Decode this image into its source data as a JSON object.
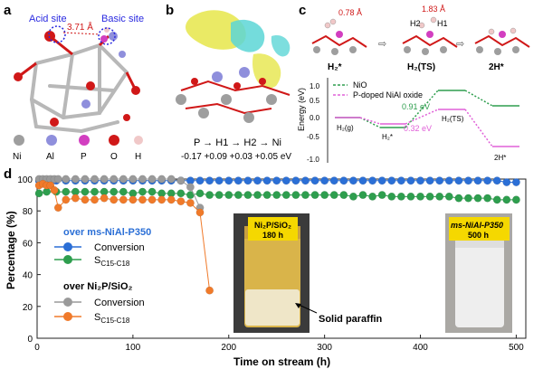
{
  "panels": {
    "a": "a",
    "b": "b",
    "c": "c",
    "d": "d"
  },
  "panel_a": {
    "acid_site": "Acid site",
    "basic_site": "Basic site",
    "distance": "3.71 Å",
    "legend": [
      "Ni",
      "Al",
      "P",
      "O",
      "H"
    ],
    "colors": {
      "Ni": "#9e9e9e",
      "Al": "#8f8fdc",
      "P": "#d23fc0",
      "O": "#d01818",
      "H": "#f0c8c8"
    }
  },
  "panel_b": {
    "path": "P → H1 → H2 → Ni",
    "charges": "-0.17  +0.09  +0.03  +0.05 eV"
  },
  "panel_c": {
    "dist1": "0.78 Å",
    "dist2": "1.83 Å",
    "h2_label": "H2",
    "h1_label": "H1",
    "states_top": [
      "H₂*",
      "H₂(TS)",
      "2H*"
    ],
    "legend": [
      "NiO",
      "P-doped NiAl oxide"
    ],
    "ylabel": "Energy (eV)",
    "yticks": [
      "1.0",
      "0.5",
      "0.0",
      "-0.5",
      "-1.0"
    ],
    "barrier_nio": "0.91 eV",
    "barrier_p": "0.32 eV",
    "state_labels": [
      "H₂(g)",
      "H₂*",
      "H₂(TS)",
      "2H*"
    ],
    "colors": {
      "nio": "#2e9e4e",
      "p": "#e060d8"
    }
  },
  "chart_data": {
    "type": "scatter",
    "xlabel": "Time on stream (h)",
    "ylabel": "Percentage (%)",
    "xlim": [
      0,
      510
    ],
    "ylim": [
      0,
      100
    ],
    "xticks": [
      "0",
      "100",
      "200",
      "300",
      "400",
      "500"
    ],
    "yticks": [
      "0",
      "20",
      "40",
      "60",
      "80",
      "100"
    ],
    "series": [
      {
        "name": "Conversion",
        "group": "ms-NiAl-P350",
        "color": "#2b6fd6",
        "x": [
          2,
          10,
          20,
          30,
          40,
          50,
          60,
          70,
          80,
          90,
          100,
          110,
          120,
          130,
          140,
          150,
          160,
          170,
          180,
          190,
          200,
          210,
          220,
          230,
          240,
          250,
          260,
          270,
          280,
          290,
          300,
          310,
          320,
          330,
          340,
          350,
          360,
          370,
          380,
          390,
          400,
          410,
          420,
          430,
          440,
          450,
          460,
          470,
          480,
          490,
          500
        ],
        "y": [
          99,
          99,
          99,
          99,
          99,
          99,
          99,
          99,
          99,
          99,
          99,
          99,
          99,
          99,
          99,
          99,
          99,
          99,
          99,
          99,
          99,
          99,
          99,
          99,
          99,
          99,
          99,
          99,
          99,
          99,
          99,
          99,
          99,
          99,
          99,
          99,
          99,
          99,
          99,
          99,
          99,
          99,
          99,
          99,
          99,
          99,
          99,
          99,
          99,
          98,
          98
        ]
      },
      {
        "name": "S C15-C18",
        "group": "ms-NiAl-P350",
        "color": "#2e9e4e",
        "x": [
          2,
          10,
          20,
          30,
          40,
          50,
          60,
          70,
          80,
          90,
          100,
          110,
          120,
          130,
          140,
          150,
          160,
          170,
          180,
          190,
          200,
          210,
          220,
          230,
          240,
          250,
          260,
          270,
          280,
          290,
          300,
          310,
          320,
          330,
          340,
          350,
          360,
          370,
          380,
          390,
          400,
          410,
          420,
          430,
          440,
          450,
          460,
          470,
          480,
          490,
          500
        ],
        "y": [
          91,
          92,
          92,
          92,
          92,
          92,
          92,
          92,
          92,
          92,
          91,
          92,
          92,
          91,
          91,
          91,
          90,
          91,
          90,
          90,
          90,
          90,
          90,
          90,
          90,
          90,
          90,
          90,
          90,
          90,
          90,
          90,
          90,
          89,
          90,
          89,
          90,
          89,
          89,
          89,
          89,
          89,
          89,
          89,
          88,
          88,
          88,
          88,
          87,
          87,
          87
        ]
      },
      {
        "name": "Conversion",
        "group": "Ni2P/SiO2",
        "color": "#9a9a9a",
        "x": [
          2,
          6,
          10,
          14,
          18,
          22,
          30,
          40,
          50,
          60,
          70,
          80,
          90,
          100,
          110,
          120,
          130,
          140,
          150,
          160,
          170
        ],
        "y": [
          100,
          100,
          100,
          100,
          100,
          100,
          100,
          100,
          100,
          100,
          100,
          100,
          100,
          100,
          100,
          100,
          100,
          100,
          99,
          95,
          82
        ]
      },
      {
        "name": "S C15-C18",
        "group": "Ni2P/SiO2",
        "color": "#f07a2a",
        "x": [
          2,
          6,
          10,
          14,
          18,
          22,
          30,
          40,
          50,
          60,
          70,
          80,
          90,
          100,
          110,
          120,
          130,
          140,
          150,
          160,
          170,
          180
        ],
        "y": [
          96,
          97,
          96,
          96,
          93,
          82,
          87,
          88,
          87,
          87,
          88,
          87,
          87,
          87,
          87,
          87,
          87,
          87,
          86,
          85,
          79,
          30
        ]
      }
    ]
  },
  "legend_d": {
    "group1": "over ms-NiAl-P350",
    "group2": "over Ni₂P/SiO₂",
    "conv": "Conversion",
    "sel": "S",
    "sel_sub": "C15-C18"
  },
  "photos": {
    "left_line1": "Ni₂P/SiO₂",
    "left_line2": "180 h",
    "right_line1": "ms-NiAl-P350",
    "right_line2": "500 h",
    "arrow_label": "Solid paraffin"
  }
}
